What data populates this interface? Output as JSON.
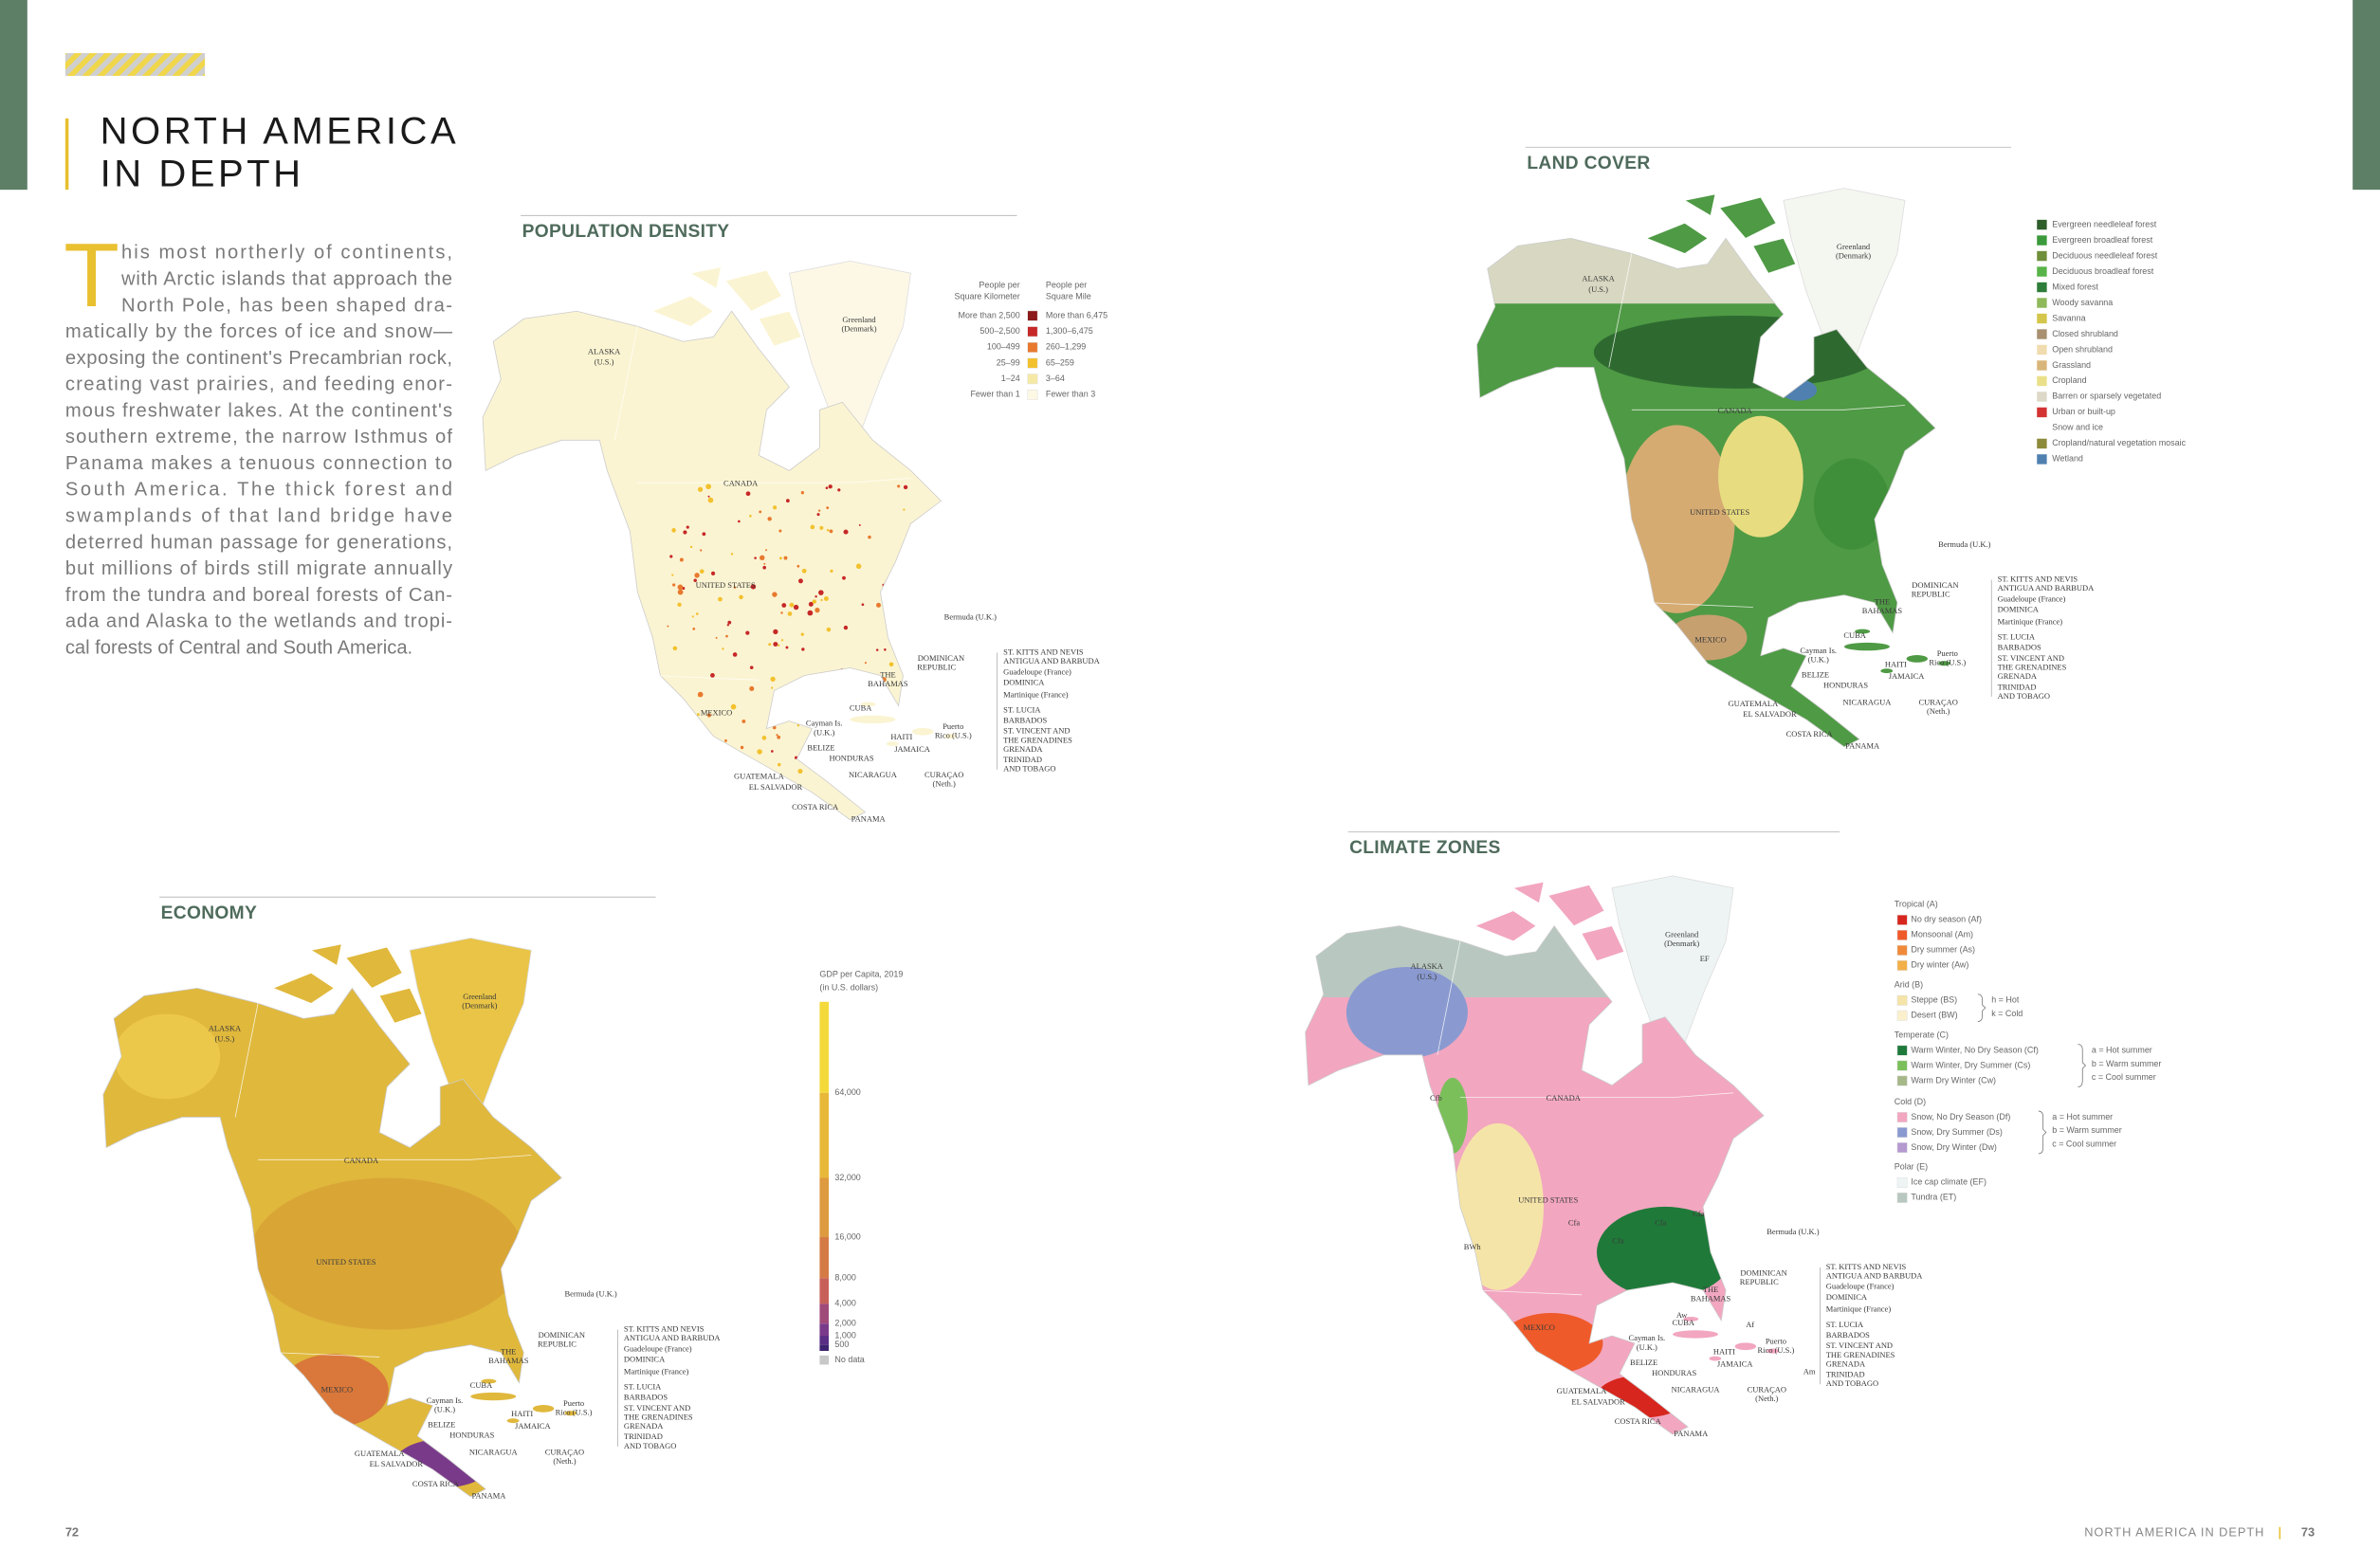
{
  "header": {
    "title_line_1": "NORTH AMERICA",
    "title_line_2": "IN DEPTH"
  },
  "intro": {
    "drop_cap": "T",
    "lines": [
      "his most northerly of continents,",
      "with Arctic islands that approach the",
      "North Pole, has been shaped dra-",
      "matically by the forces of ice and snow—",
      "exposing the continent's Precambrian rock,",
      "creating vast prairies, and feeding enor-",
      "mous freshwater lakes. At the continent's",
      "southern extreme, the narrow Isthmus of",
      "Panama makes a tenuous connection to",
      "South America. The thick forest and",
      "swamplands of that land bridge have",
      "deterred human passage for generations,",
      "but millions of birds still migrate annually",
      "from the tundra and boreal forests of Can-",
      "ada and Alaska to the wetlands and tropi-",
      "cal forests of Central and South America."
    ]
  },
  "panels": [
    {
      "title": "POPULATION DENSITY",
      "labels": [
        "ALASKA",
        "(U.S.)",
        "CANADA",
        "Greenland",
        "(Denmark)",
        "UNITED STATES",
        "MEXICO",
        "Bermuda (U.K.)",
        "THE",
        "BAHAMAS",
        "DOMINICAN",
        "REPUBLIC",
        "CUBA",
        "Cayman Is.",
        "(U.K.)",
        "HAITI",
        "Puerto",
        "Rico (U.S.)",
        "BELIZE",
        "HONDURAS",
        "JAMAICA",
        "GUATEMALA",
        "EL SALVADOR",
        "NICARAGUA",
        "CURAÇAO",
        "(Neth.)",
        "COSTA RICA",
        "PANAMA",
        "ST. KITTS AND NEVIS",
        "ANTIGUA AND BARBUDA",
        "Guadeloupe (France)",
        "DOMINICA",
        "Martinique (France)",
        "ST. LUCIA",
        "BARBADOS",
        "ST. VINCENT AND",
        "THE GRENADINES",
        "GRENADA",
        "TRINIDAD",
        "AND TOBAGO"
      ],
      "legend": {
        "km_header": [
          "People per",
          "Square Kilometer"
        ],
        "mi_header": [
          "People per",
          "Square Mile"
        ],
        "rows": [
          {
            "km": "More than 2,500",
            "mi": "More than 6,475",
            "color": "#8b1a1a"
          },
          {
            "km": "500–2,500",
            "mi": "1,300–6,475",
            "color": "#c62828"
          },
          {
            "km": "100–499",
            "mi": "260–1,299",
            "color": "#e8792e"
          },
          {
            "km": "25–99",
            "mi": "65–259",
            "color": "#f2c12e"
          },
          {
            "km": "1–24",
            "mi": "3–64",
            "color": "#f6e9a6"
          },
          {
            "km": "Fewer than 1",
            "mi": "Fewer than 3",
            "color": "#fdf8e4"
          }
        ]
      }
    },
    {
      "title": "LAND COVER",
      "labels": [
        "ALASKA",
        "(U.S.)",
        "CANADA",
        "Greenland",
        "(Denmark)",
        "UNITED STATES",
        "MEXICO",
        "Bermuda (U.K.)",
        "THE",
        "BAHAMAS",
        "DOMINICAN",
        "REPUBLIC",
        "CUBA",
        "Cayman Is.",
        "(U.K.)",
        "HAITI",
        "Puerto",
        "Rico (U.S.)",
        "BELIZE",
        "HONDURAS",
        "JAMAICA",
        "GUATEMALA",
        "EL SALVADOR",
        "NICARAGUA",
        "CURAÇAO",
        "(Neth.)",
        "COSTA RICA",
        "PANAMA",
        "ST. KITTS AND NEVIS",
        "ANTIGUA AND BARBUDA",
        "Guadeloupe (France)",
        "DOMINICA",
        "Martinique (France)",
        "ST. LUCIA",
        "BARBADOS",
        "ST. VINCENT AND",
        "THE GRENADINES",
        "GRENADA",
        "TRINIDAD",
        "AND TOBAGO"
      ],
      "legend": {
        "items": [
          {
            "label": "Evergreen needleleaf forest",
            "color": "#2e5e2a"
          },
          {
            "label": "Evergreen broadleaf forest",
            "color": "#3b9a3b"
          },
          {
            "label": "Deciduous needleleaf forest",
            "color": "#6f8f3a"
          },
          {
            "label": "Deciduous broadleaf forest",
            "color": "#58b348"
          },
          {
            "label": "Mixed forest",
            "color": "#2f7d3a"
          },
          {
            "label": "Woody savanna",
            "color": "#8fb95a"
          },
          {
            "label": "Savanna",
            "color": "#d4c64a"
          },
          {
            "label": "Closed shrubland",
            "color": "#a89070"
          },
          {
            "label": "Open shrubland",
            "color": "#f1dcb0"
          },
          {
            "label": "Grassland",
            "color": "#d8b57a"
          },
          {
            "label": "Cropland",
            "color": "#eae08a"
          },
          {
            "label": "Barren or sparsely vegetated",
            "color": "#ddd8c8"
          },
          {
            "label": "Urban or built-up",
            "color": "#d33333"
          },
          {
            "label": "Snow and ice",
            "color": "#ffffff"
          },
          {
            "label": "Cropland/natural vegetation mosaic",
            "color": "#8d8a3a"
          },
          {
            "label": "Wetland",
            "color": "#4f80b0"
          }
        ]
      }
    },
    {
      "title": "ECONOMY",
      "labels": [
        "ALASKA",
        "(U.S.)",
        "CANADA",
        "Greenland",
        "(Denmark)",
        "UNITED STATES",
        "MEXICO",
        "Bermuda (U.K.)",
        "THE",
        "BAHAMAS",
        "DOMINICAN",
        "REPUBLIC",
        "CUBA",
        "Cayman Is.",
        "(U.K.)",
        "HAITI",
        "Puerto",
        "Rico (U.S.)",
        "BELIZE",
        "HONDURAS",
        "JAMAICA",
        "GUATEMALA",
        "EL SALVADOR",
        "NICARAGUA",
        "CURAÇAO",
        "(Neth.)",
        "COSTA RICA",
        "PANAMA",
        "ST. KITTS AND NEVIS",
        "ANTIGUA AND BARBUDA",
        "Guadeloupe (France)",
        "DOMINICA",
        "Martinique (France)",
        "ST. LUCIA",
        "BARBADOS",
        "ST. VINCENT AND",
        "THE GRENADINES",
        "GRENADA",
        "TRINIDAD",
        "AND TOBAGO"
      ],
      "legend": {
        "title": [
          "GDP per Capita, 2019",
          "(in U.S. dollars)"
        ],
        "ticks": [
          "64,000",
          "32,000",
          "16,000",
          "8,000",
          "4,000",
          "2,000",
          "1,000",
          "500"
        ],
        "no_data": "No data",
        "ramp": [
          "#f4d93a",
          "#e8b83a",
          "#dd9a3e",
          "#d47a45",
          "#c8605a",
          "#a04a7a",
          "#7a3a8a",
          "#5a2e84",
          "#3e2470"
        ],
        "no_data_color": "#c8c8c8"
      }
    },
    {
      "title": "CLIMATE ZONES",
      "labels": [
        "ALASKA",
        "(U.S.)",
        "CANADA",
        "Greenland",
        "(Denmark)",
        "UNITED STATES",
        "MEXICO",
        "Bermuda (U.K.)",
        "THE",
        "BAHAMAS",
        "DOMINICAN",
        "REPUBLIC",
        "CUBA",
        "Cayman Is.",
        "(U.K.)",
        "HAITI",
        "Puerto",
        "Rico (U.S.)",
        "BELIZE",
        "HONDURAS",
        "JAMAICA",
        "GUATEMALA",
        "EL SALVADOR",
        "NICARAGUA",
        "CURAÇAO",
        "(Neth.)",
        "COSTA RICA",
        "PANAMA",
        "ST. KITTS AND NEVIS",
        "ANTIGUA AND BARBUDA",
        "Guadeloupe (France)",
        "DOMINICA",
        "Martinique (France)",
        "ST. LUCIA",
        "BARBADOS",
        "ST. VINCENT AND",
        "THE GRENADINES",
        "GRENADA",
        "TRINIDAD",
        "AND TOBAGO"
      ],
      "zone_codes": [
        "EF",
        "Cfb",
        "Cfa",
        "Cfa",
        "Cfa",
        "Cfa",
        "BWh",
        "Aw",
        "Af",
        "Am"
      ],
      "legend": {
        "groups": [
          {
            "name": "Tropical (A)",
            "items": [
              {
                "label": "No dry season (Af)",
                "color": "#d7261e"
              },
              {
                "label": "Monsoonal (Am)",
                "color": "#ef5a2a"
              },
              {
                "label": "Dry summer (As)",
                "color": "#f08a3a"
              },
              {
                "label": "Dry winter (Aw)",
                "color": "#f3b048"
              }
            ],
            "notes": []
          },
          {
            "name": "Arid (B)",
            "items": [
              {
                "label": "Steppe (BS)",
                "color": "#f5e4a8"
              },
              {
                "label": "Desert (BW)",
                "color": "#fbf0cc"
              }
            ],
            "notes": [
              "h = Hot",
              "k = Cold"
            ]
          },
          {
            "name": "Temperate (C)",
            "items": [
              {
                "label": "Warm Winter, No Dry Season (Cf)",
                "color": "#1f7a3a"
              },
              {
                "label": "Warm Winter, Dry Summer (Cs)",
                "color": "#7bbf5a"
              },
              {
                "label": "Warm Dry Winter (Cw)",
                "color": "#a6b88a"
              }
            ],
            "notes": [
              "a = Hot summer",
              "b = Warm summer",
              "c = Cool summer"
            ]
          },
          {
            "name": "Cold (D)",
            "items": [
              {
                "label": "Snow, No Dry Season (Df)",
                "color": "#f2a6c0"
              },
              {
                "label": "Snow, Dry Summer (Ds)",
                "color": "#8a9ad0"
              },
              {
                "label": "Snow, Dry Winter (Dw)",
                "color": "#b49ad0"
              }
            ],
            "notes": [
              "a = Hot summer",
              "b = Warm summer",
              "c = Cool summer"
            ]
          },
          {
            "name": "Polar (E)",
            "items": [
              {
                "label": "Ice cap climate (EF)",
                "color": "#eef4f4"
              },
              {
                "label": "Tundra (ET)",
                "color": "#b8c8c0"
              }
            ],
            "notes": []
          }
        ]
      }
    }
  ],
  "footer": {
    "left_page": "72",
    "running_head": "NORTH AMERICA IN DEPTH",
    "right_page": "73"
  }
}
